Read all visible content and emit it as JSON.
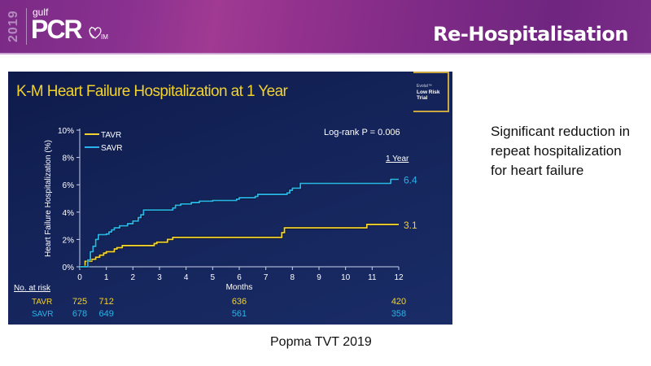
{
  "header": {
    "logo": {
      "year": "2019",
      "gulf": "gulf",
      "pcr": "PCR",
      "im": "IM"
    },
    "title": "Re-Hospitalisation",
    "colors": {
      "band": "#7e2a86",
      "rule": "#c9a6d3"
    }
  },
  "panel": {
    "title": "K-M Heart Failure Hospitalization at 1 Year",
    "badge": {
      "top": "Evolut™",
      "line1": "Low Risk",
      "line2": "Trial"
    },
    "pvalue": "Log-rank P = 0.006",
    "year_label": "1 Year",
    "risk_table": {
      "header": "No. at risk",
      "rows": [
        {
          "label": "TAVR",
          "color": "#f2d22c",
          "values": [
            "725",
            "712",
            "636",
            "420"
          ],
          "months": [
            0,
            1,
            6,
            12
          ]
        },
        {
          "label": "SAVR",
          "color": "#2ab3e8",
          "values": [
            "678",
            "649",
            "561",
            "358"
          ],
          "months": [
            0,
            1,
            6,
            12
          ]
        }
      ]
    }
  },
  "chart_data": {
    "type": "line",
    "title": "K-M Heart Failure Hospitalization at 1 Year",
    "xlabel": "Months",
    "ylabel": "Heart Failure Hospitalization (%)",
    "xlim": [
      0,
      12
    ],
    "ylim": [
      0,
      10
    ],
    "xticks": [
      "0",
      "1",
      "2",
      "3",
      "4",
      "5",
      "6",
      "7",
      "8",
      "9",
      "10",
      "11",
      "12"
    ],
    "yticks": [
      "0%",
      "2%",
      "4%",
      "6%",
      "8%",
      "10%"
    ],
    "legend": "top-left",
    "series": [
      {
        "name": "TAVR",
        "color": "#f2d22c",
        "end_label": "3.1",
        "x": [
          0,
          0.1,
          0.2,
          0.3,
          0.45,
          0.6,
          0.75,
          0.9,
          1.0,
          1.3,
          1.4,
          1.6,
          2.8,
          2.9,
          3.3,
          3.5,
          7.6,
          7.7,
          10.7,
          10.8,
          12
        ],
        "y": [
          0,
          0,
          0.4,
          0.4,
          0.55,
          0.7,
          0.85,
          1.0,
          1.1,
          1.3,
          1.4,
          1.55,
          1.7,
          1.8,
          2.0,
          2.15,
          2.5,
          2.85,
          2.85,
          3.1,
          3.1
        ]
      },
      {
        "name": "SAVR",
        "color": "#2ab3e8",
        "end_label": "6.4",
        "x": [
          0,
          0.2,
          0.3,
          0.4,
          0.5,
          0.6,
          0.7,
          1.0,
          1.1,
          1.2,
          1.3,
          1.5,
          1.8,
          2.0,
          2.2,
          2.3,
          2.4,
          3.5,
          3.6,
          3.8,
          4.2,
          4.5,
          5.0,
          5.9,
          6.0,
          6.6,
          6.7,
          7.8,
          7.9,
          8.0,
          8.3,
          11.6,
          11.7,
          12
        ],
        "y": [
          0,
          0,
          0.5,
          1.1,
          1.5,
          2.0,
          2.35,
          2.4,
          2.55,
          2.7,
          2.85,
          3.0,
          3.15,
          3.35,
          3.6,
          3.8,
          4.15,
          4.3,
          4.5,
          4.6,
          4.7,
          4.8,
          4.85,
          4.95,
          5.05,
          5.15,
          5.3,
          5.4,
          5.6,
          5.75,
          6.1,
          6.1,
          6.4,
          6.4
        ]
      }
    ]
  },
  "side_text": "Significant reduction in repeat hospitalization for heart failure",
  "citation": "Popma TVT 2019"
}
